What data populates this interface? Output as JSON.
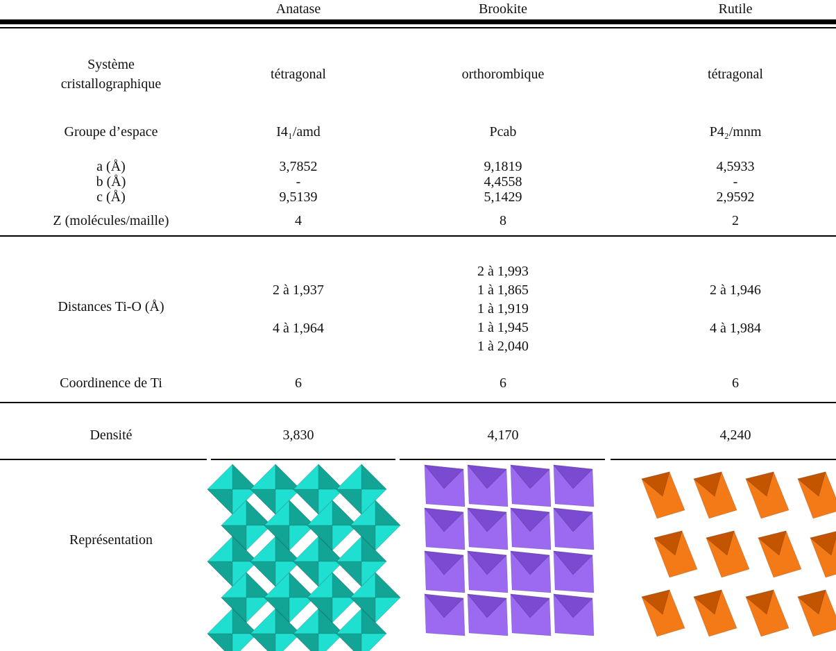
{
  "table": {
    "columns": [
      "Anatase",
      "Brookite",
      "Rutile"
    ],
    "rows": [
      {
        "label": [
          "Système",
          "cristallographique"
        ],
        "cells": [
          [
            "tétragonal"
          ],
          [
            "orthorombique"
          ],
          [
            "tétragonal"
          ]
        ]
      },
      {
        "label": [
          "Groupe d’espace"
        ],
        "cells": [
          [
            "I4₁/amd"
          ],
          [
            "Pcab"
          ],
          [
            "P4₂/mnm"
          ]
        ]
      },
      {
        "label": [
          "a (Å)",
          "b (Å)",
          "c (Å)"
        ],
        "cells": [
          [
            "3,7852",
            "-",
            "9,5139"
          ],
          [
            "9,1819",
            "4,4558",
            "5,1429"
          ],
          [
            "4,5933",
            "-",
            "2,9592"
          ]
        ]
      },
      {
        "label": [
          "Z (molécules/maille)"
        ],
        "cells": [
          [
            "4"
          ],
          [
            "8"
          ],
          [
            "2"
          ]
        ]
      },
      {
        "label": [
          "Distances Ti-O (Å)"
        ],
        "cells": [
          [
            "2 à 1,937",
            "4 à 1,964"
          ],
          [
            "2 à 1,993",
            "1 à 1,865",
            "1 à 1,919",
            "1 à 1,945",
            "1 à 2,040"
          ],
          [
            "2 à 1,946",
            "4 à 1,984"
          ]
        ]
      },
      {
        "label": [
          "Coordinence de Ti"
        ],
        "cells": [
          [
            "6"
          ],
          [
            "6"
          ],
          [
            "6"
          ]
        ]
      },
      {
        "label": [
          "Densité"
        ],
        "cells": [
          [
            "3,830"
          ],
          [
            "4,170"
          ],
          [
            "4,240"
          ]
        ]
      },
      {
        "label": [
          "Représentation"
        ]
      }
    ]
  }
}
